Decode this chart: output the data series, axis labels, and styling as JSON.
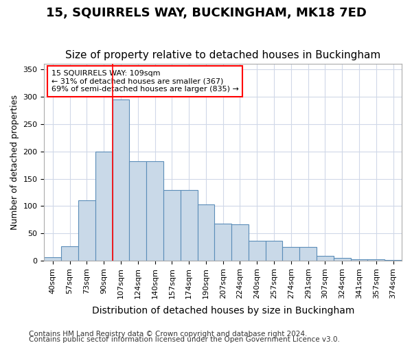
{
  "title": "15, SQUIRRELS WAY, BUCKINGHAM, MK18 7ED",
  "subtitle": "Size of property relative to detached houses in Buckingham",
  "xlabel": "Distribution of detached houses by size in Buckingham",
  "ylabel": "Number of detached properties",
  "categories": [
    "40sqm",
    "57sqm",
    "73sqm",
    "90sqm",
    "107sqm",
    "124sqm",
    "140sqm",
    "157sqm",
    "174sqm",
    "190sqm",
    "207sqm",
    "224sqm",
    "240sqm",
    "257sqm",
    "274sqm",
    "291sqm",
    "307sqm",
    "324sqm",
    "341sqm",
    "357sqm",
    "374sqm"
  ],
  "values": [
    6,
    27,
    110,
    200,
    295,
    182,
    182,
    130,
    130,
    103,
    68,
    67,
    36,
    36,
    25,
    25,
    9,
    5,
    3,
    3,
    1
  ],
  "bar_color": "#c9d9e8",
  "bar_edge_color": "#5b8db8",
  "grid_color": "#d0d8e8",
  "vline_color": "red",
  "vline_x": 3.5,
  "annotation_text": "15 SQUIRRELS WAY: 109sqm\n← 31% of detached houses are smaller (367)\n69% of semi-detached houses are larger (835) →",
  "annotation_box_color": "white",
  "annotation_box_edge_color": "red",
  "footnote1": "Contains HM Land Registry data © Crown copyright and database right 2024.",
  "footnote2": "Contains public sector information licensed under the Open Government Licence v3.0.",
  "ylim": [
    0,
    360
  ],
  "yticks": [
    0,
    50,
    100,
    150,
    200,
    250,
    300,
    350
  ],
  "title_fontsize": 13,
  "subtitle_fontsize": 11,
  "xlabel_fontsize": 10,
  "ylabel_fontsize": 9,
  "tick_fontsize": 8,
  "footnote_fontsize": 7.5
}
